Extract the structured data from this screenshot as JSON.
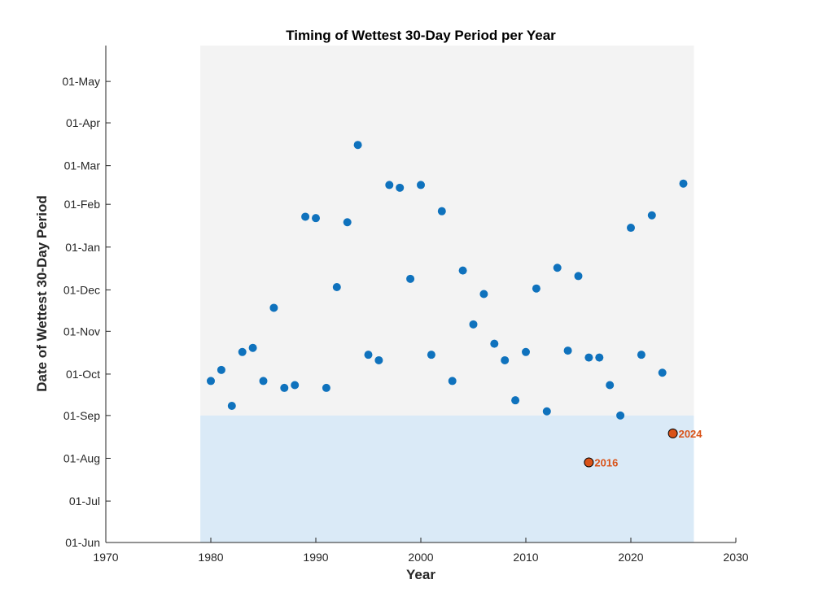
{
  "chart_data": {
    "type": "scatter",
    "title": "Timing of Wettest 30-Day Period per Year",
    "xlabel": "Year",
    "ylabel": "Date of Wettest 30-Day Period",
    "xlim": [
      1970,
      2030
    ],
    "xticks": [
      1970,
      1980,
      1990,
      2000,
      2010,
      2020,
      2030
    ],
    "ylim_days": [
      0,
      360
    ],
    "yticks": [
      {
        "label": "01-Jun",
        "day": 0
      },
      {
        "label": "01-Jul",
        "day": 30
      },
      {
        "label": "01-Aug",
        "day": 61
      },
      {
        "label": "01-Sep",
        "day": 92
      },
      {
        "label": "01-Oct",
        "day": 122
      },
      {
        "label": "01-Nov",
        "day": 153
      },
      {
        "label": "01-Dec",
        "day": 183
      },
      {
        "label": "01-Jan",
        "day": 214
      },
      {
        "label": "01-Feb",
        "day": 245
      },
      {
        "label": "01-Mar",
        "day": 273
      },
      {
        "label": "01-Apr",
        "day": 304
      },
      {
        "label": "01-May",
        "day": 334
      }
    ],
    "shaded_regions": [
      {
        "name": "gray-region",
        "x": [
          1979,
          2026
        ],
        "y_days": [
          92,
          360
        ],
        "color": "#f3f3f3"
      },
      {
        "name": "blue-region",
        "x": [
          1979,
          2026
        ],
        "y_days": [
          0,
          92
        ],
        "color": "#daeaf7"
      }
    ],
    "series": [
      {
        "name": "wettest-period-start",
        "color": "#0f72bd",
        "points": [
          {
            "x": 1980,
            "y": 117
          },
          {
            "x": 1981,
            "y": 125
          },
          {
            "x": 1982,
            "y": 99
          },
          {
            "x": 1983,
            "y": 138
          },
          {
            "x": 1984,
            "y": 141
          },
          {
            "x": 1985,
            "y": 117
          },
          {
            "x": 1986,
            "y": 170
          },
          {
            "x": 1987,
            "y": 112
          },
          {
            "x": 1988,
            "y": 114
          },
          {
            "x": 1989,
            "y": 236
          },
          {
            "x": 1990,
            "y": 235
          },
          {
            "x": 1991,
            "y": 112
          },
          {
            "x": 1992,
            "y": 185
          },
          {
            "x": 1993,
            "y": 232
          },
          {
            "x": 1994,
            "y": 288
          },
          {
            "x": 1995,
            "y": 136
          },
          {
            "x": 1996,
            "y": 132
          },
          {
            "x": 1997,
            "y": 259
          },
          {
            "x": 1998,
            "y": 257
          },
          {
            "x": 1999,
            "y": 191
          },
          {
            "x": 2000,
            "y": 259
          },
          {
            "x": 2001,
            "y": 136
          },
          {
            "x": 2002,
            "y": 240
          },
          {
            "x": 2003,
            "y": 117
          },
          {
            "x": 2004,
            "y": 197
          },
          {
            "x": 2005,
            "y": 158
          },
          {
            "x": 2006,
            "y": 180
          },
          {
            "x": 2007,
            "y": 144
          },
          {
            "x": 2008,
            "y": 132
          },
          {
            "x": 2009,
            "y": 103
          },
          {
            "x": 2010,
            "y": 138
          },
          {
            "x": 2011,
            "y": 184
          },
          {
            "x": 2012,
            "y": 95
          },
          {
            "x": 2013,
            "y": 199
          },
          {
            "x": 2014,
            "y": 139
          },
          {
            "x": 2015,
            "y": 193
          },
          {
            "x": 2016,
            "y": 134
          },
          {
            "x": 2017,
            "y": 134
          },
          {
            "x": 2018,
            "y": 114
          },
          {
            "x": 2019,
            "y": 92
          },
          {
            "x": 2020,
            "y": 228
          },
          {
            "x": 2021,
            "y": 136
          },
          {
            "x": 2022,
            "y": 237
          },
          {
            "x": 2023,
            "y": 123
          },
          {
            "x": 2025,
            "y": 260
          }
        ]
      }
    ],
    "highlighted": {
      "color": "#d95319",
      "points": [
        {
          "x": 2016,
          "y": 58,
          "label": "2016"
        },
        {
          "x": 2024,
          "y": 79,
          "label": "2024"
        }
      ]
    }
  }
}
